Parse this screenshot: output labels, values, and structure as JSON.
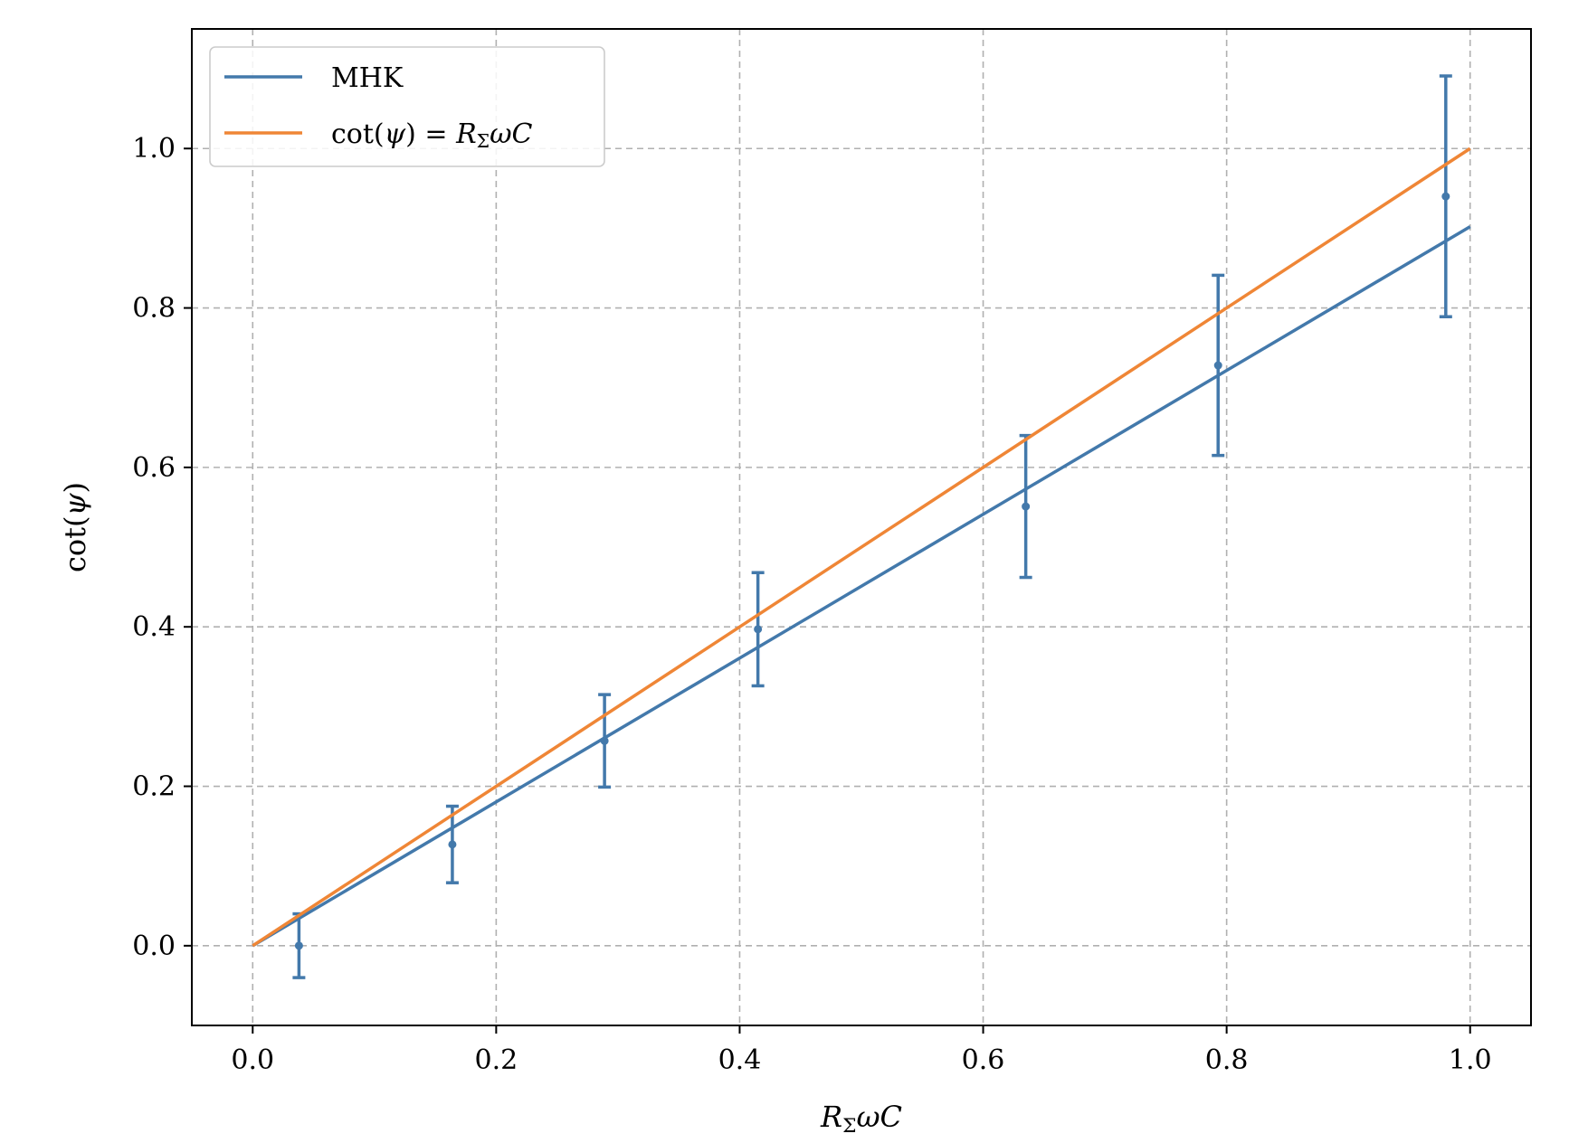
{
  "chart_data": {
    "type": "line",
    "xlabel": "R_ΣωC",
    "ylabel": "cot(ψ)",
    "xlim": [
      -0.05,
      1.05
    ],
    "ylim": [
      -0.1,
      1.15
    ],
    "xticks": [
      "0.0",
      "0.2",
      "0.4",
      "0.6",
      "0.8",
      "1.0"
    ],
    "yticks": [
      "0.0",
      "0.2",
      "0.4",
      "0.6",
      "0.8",
      "1.0"
    ],
    "grid": true,
    "legend_position": "top-left",
    "colors": {
      "mhk": "#4379ab",
      "theory": "#ef8636"
    },
    "series": [
      {
        "name": "MHK",
        "kind": "fit-line",
        "x": [
          0.0,
          1.0
        ],
        "y": [
          0.0,
          0.902
        ]
      },
      {
        "name": "cot(ψ) = RΣωC",
        "kind": "line",
        "x": [
          0.0,
          1.0
        ],
        "y": [
          0.0,
          1.0
        ]
      },
      {
        "name": "",
        "kind": "errorbar",
        "x": [
          0.038,
          0.164,
          0.289,
          0.415,
          0.635,
          0.793,
          0.98
        ],
        "y": [
          0.0,
          0.127,
          0.257,
          0.397,
          0.551,
          0.728,
          0.94
        ],
        "yerr": [
          0.04,
          0.048,
          0.058,
          0.071,
          0.089,
          0.113,
          0.151
        ]
      }
    ],
    "legend_entries": [
      {
        "label_parts": [
          {
            "text": "MHK",
            "italic": false
          }
        ]
      },
      {
        "label_parts": [
          {
            "text": "cot(",
            "italic": false
          },
          {
            "text": "ψ",
            "italic": true
          },
          {
            "text": ") = ",
            "italic": false
          },
          {
            "text": "R",
            "italic": true
          },
          {
            "text": "Σ",
            "italic": false,
            "sub": true
          },
          {
            "text": "ωC",
            "italic": true
          }
        ]
      }
    ],
    "xlabel_parts": [
      {
        "text": "R",
        "italic": true
      },
      {
        "text": "Σ",
        "italic": false,
        "sub": true
      },
      {
        "text": "ωC",
        "italic": true
      }
    ],
    "ylabel_parts": [
      {
        "text": "cot(",
        "italic": false
      },
      {
        "text": "ψ",
        "italic": true
      },
      {
        "text": ")",
        "italic": false
      }
    ]
  }
}
